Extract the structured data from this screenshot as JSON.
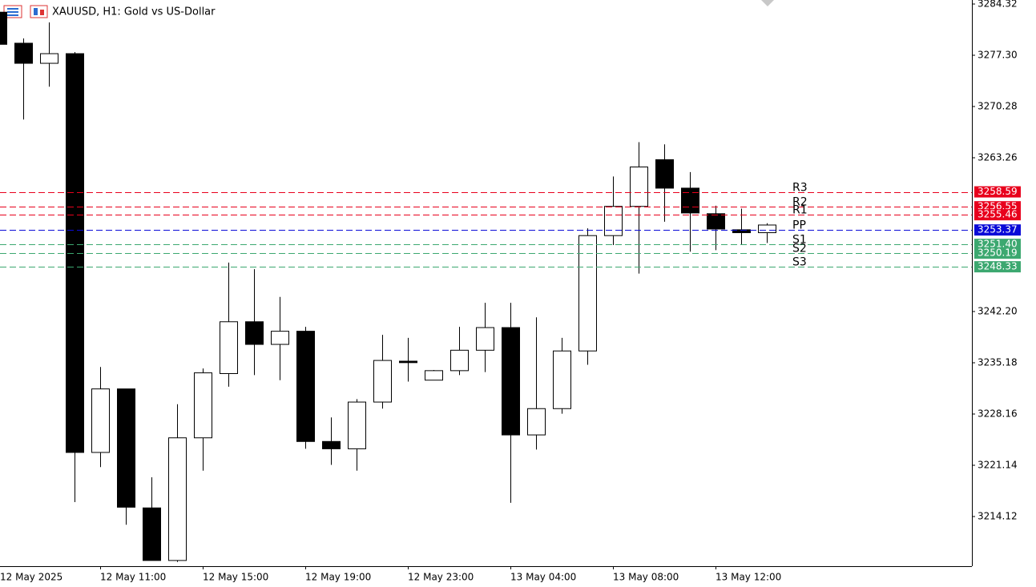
{
  "chart_data": {
    "type": "candlestick",
    "title": "XAUUSD, H1:  Gold vs US-Dollar",
    "categories": [
      "12 May 2025",
      null,
      null,
      null,
      "12 May 11:00",
      null,
      null,
      null,
      "12 May 15:00",
      null,
      null,
      null,
      "12 May 19:00",
      null,
      null,
      null,
      "12 May 23:00",
      null,
      null,
      null,
      "13 May 04:00",
      null,
      null,
      null,
      "13 May 08:00",
      null,
      null,
      null,
      "13 May 12:00",
      null,
      null
    ],
    "open": [
      3283.2,
      3278.95,
      3276.2,
      3277.52,
      3222.9,
      3231.6,
      3215.3,
      3208.1,
      3224.9,
      3233.7,
      3240.8,
      3237.7,
      3239.5,
      3224.4,
      3223.4,
      3229.8,
      3235.4,
      3232.8,
      3234.1,
      3236.9,
      3240.0,
      3225.3,
      3228.9,
      3236.8,
      3252.6,
      3256.6,
      3263.0,
      3259.1,
      3255.6,
      3253.4,
      3253.0
    ],
    "high": [
      3284.0,
      3279.6,
      3281.8,
      3277.74,
      3234.6,
      3231.6,
      3219.5,
      3229.5,
      3234.4,
      3248.9,
      3248.0,
      3244.2,
      3240.1,
      3227.7,
      3230.2,
      3239.0,
      3238.6,
      3234.2,
      3240.1,
      3243.4,
      3243.4,
      3241.4,
      3238.6,
      3253.6,
      3260.7,
      3265.4,
      3265.1,
      3261.3,
      3256.7,
      3256.3,
      3254.3
    ],
    "low": [
      3278.0,
      3268.5,
      3273.0,
      3216.1,
      3220.9,
      3213.0,
      3208.1,
      3207.9,
      3220.4,
      3231.9,
      3233.5,
      3232.8,
      3223.4,
      3221.2,
      3220.4,
      3228.9,
      3232.6,
      3232.8,
      3233.5,
      3233.9,
      3216.0,
      3223.3,
      3228.2,
      3234.9,
      3251.3,
      3247.4,
      3254.5,
      3250.4,
      3250.6,
      3251.3,
      3251.6
    ],
    "close": [
      3278.8,
      3276.2,
      3277.52,
      3222.9,
      3231.6,
      3215.4,
      3208.1,
      3224.9,
      3233.8,
      3240.8,
      3237.7,
      3239.5,
      3224.4,
      3223.4,
      3229.8,
      3235.5,
      3235.2,
      3234.1,
      3236.9,
      3240.0,
      3225.3,
      3228.9,
      3236.8,
      3252.6,
      3256.6,
      3262.0,
      3259.1,
      3255.7,
      3253.5,
      3253.0,
      3254.05
    ],
    "ylim": [
      3207.32,
      3284.87
    ],
    "yticks": [
      3284.32,
      {
        "value": 3277.3,
        "label": "3277.30"
      },
      3270.28,
      3263.26,
      {
        "value": 3242.2,
        "label": "3242.20"
      },
      3235.18,
      3228.16,
      3221.14,
      3214.12
    ],
    "pivots": {
      "names": [
        "R3",
        "R2",
        "R1",
        "PP",
        "S1",
        "S2",
        "S3"
      ],
      "values": [
        3258.59,
        3256.55,
        3255.46,
        3253.37,
        3251.4,
        3250.19,
        3248.33
      ],
      "value_labels": [
        "3258.59",
        "3256.55",
        "3255.46",
        "3253.37",
        "3251.40",
        "3250.19",
        "3248.33"
      ],
      "colors": [
        "#e8001c",
        "#e8001c",
        "#e8001c",
        "#0a0ad8",
        "#3ca870",
        "#3ca870",
        "#3ca870"
      ]
    },
    "up_color": "#ffffff",
    "down_color": "#000000"
  }
}
